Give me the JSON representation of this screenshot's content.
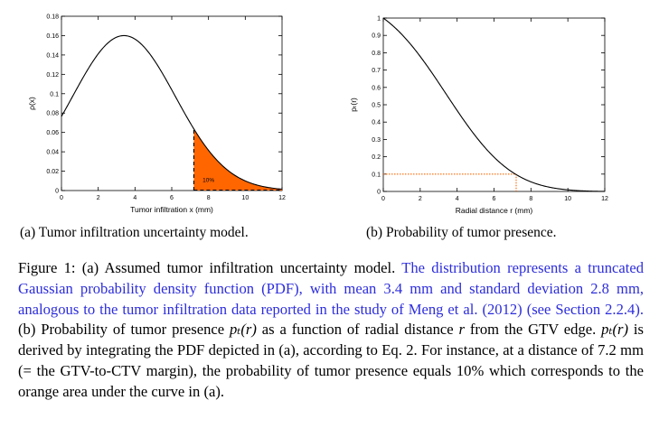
{
  "chart_data": [
    {
      "type": "area",
      "panel": "a",
      "xlabel": "Tumor infiltration x (mm)",
      "ylabel": "ρ(x)",
      "xlim": [
        0,
        12
      ],
      "ylim": [
        0,
        0.18
      ],
      "xticks": [
        "0",
        "2",
        "4",
        "6",
        "8",
        "10",
        "12"
      ],
      "yticks": [
        "0",
        "0.02",
        "0.04",
        "0.06",
        "0.08",
        "0.1",
        "0.12",
        "0.14",
        "0.16",
        "0.18"
      ],
      "curve": {
        "distribution": "truncated gaussian",
        "mean": 3.4,
        "sd": 2.8,
        "peak": 0.16
      },
      "shaded_region": {
        "from": 7.2,
        "to": 12,
        "color": "#ff6600",
        "label": "10%"
      },
      "line_color": "#000000",
      "grid": false
    },
    {
      "type": "line",
      "panel": "b",
      "xlabel": "Radial distance r (mm)",
      "ylabel": "pₜ(r)",
      "xlim": [
        0,
        12
      ],
      "ylim": [
        0,
        1
      ],
      "xticks": [
        "0",
        "2",
        "4",
        "6",
        "8",
        "10",
        "12"
      ],
      "yticks": [
        "0",
        "0.1",
        "0.2",
        "0.3",
        "0.4",
        "0.5",
        "0.6",
        "0.7",
        "0.8",
        "0.9",
        "1"
      ],
      "marker": {
        "x": 7.2,
        "y": 0.1,
        "color": "#ff6600",
        "style": "dotted"
      },
      "line_color": "#000000",
      "grid": false
    }
  ],
  "subcaptions": {
    "a": "(a)  Tumor infiltration uncertainty model.",
    "b": "(b)  Probability of tumor presence."
  },
  "caption": {
    "lead": "Figure 1: (a) Assumed tumor infiltration uncertainty model. ",
    "blue": "The distribution represents a truncated Gaussian probability density function (PDF), with mean 3.4 mm and standard deviation 2.8 mm, analogous to the tumor infiltration data reported in the study of Meng et al. (2012) (see Section 2.2.4).",
    "part1": " (b) Probability of tumor presence ",
    "pt_r": "pₜ(r)",
    "part2": " as a function of radial distance ",
    "r": "r",
    "part3": " from the GTV edge. ",
    "pt_r2": "pₜ(r)",
    "part4": " is derived by integrating the PDF depicted in (a), according to Eq. 2. For instance, at a distance of 7.2 mm (= the GTV-to-CTV margin), the probability of tumor presence equals 10% which corresponds to the orange area under the curve in (a)."
  }
}
